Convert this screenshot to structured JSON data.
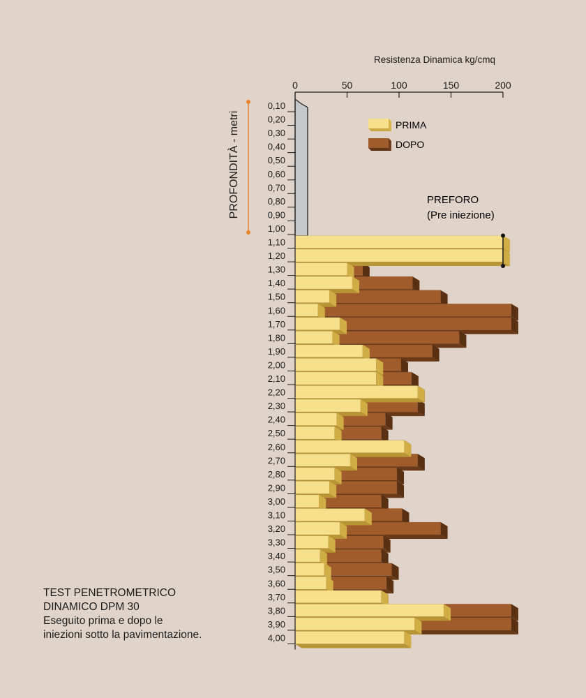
{
  "caption": {
    "line1": "TEST PENETROMETRICO",
    "line2": "DINAMICO DPM 30",
    "line3": "Eseguito prima e dopo le",
    "line4": "iniezioni sotto la pavimentazione."
  },
  "chart_data": {
    "type": "bar",
    "orientation": "horizontal",
    "x_axis_label": "Resistenza Dinamica kg/cmq",
    "y_axis_label": "PROFONDITÀ - metri",
    "xlim": [
      0,
      200
    ],
    "x_ticks": [
      "0",
      "50",
      "100",
      "150",
      "200"
    ],
    "x_tick_values": [
      0,
      50,
      100,
      150,
      200
    ],
    "legend_position": "top-right",
    "categories": [
      "0,10",
      "0,20",
      "0,30",
      "0,40",
      "0,50",
      "0,60",
      "0,70",
      "0,80",
      "0,90",
      "1,00",
      "1,10",
      "1,20",
      "1,30",
      "1,40",
      "1,50",
      "1,60",
      "1,70",
      "1,80",
      "1,90",
      "2,00",
      "2,10",
      "2,20",
      "2,30",
      "2,40",
      "2,50",
      "2,60",
      "2,70",
      "2,80",
      "2,90",
      "3,00",
      "3,10",
      "3,20",
      "3,30",
      "3,40",
      "3,50",
      "3,60",
      "3,70",
      "3,80",
      "3,90",
      "4,00"
    ],
    "series": [
      {
        "name": "PRIMA",
        "color": "#f7e08c",
        "values": [
          null,
          null,
          null,
          null,
          null,
          null,
          null,
          null,
          null,
          null,
          200,
          200,
          50,
          55,
          33,
          22,
          43,
          36,
          65,
          78,
          78,
          118,
          63,
          40,
          38,
          105,
          53,
          38,
          33,
          23,
          67,
          43,
          32,
          24,
          28,
          30,
          83,
          143,
          115,
          105
        ]
      },
      {
        "name": "DOPO",
        "color": "#a15c2c",
        "values": [
          null,
          null,
          null,
          null,
          null,
          null,
          null,
          null,
          null,
          null,
          null,
          null,
          65,
          113,
          140,
          208,
          208,
          158,
          132,
          102,
          112,
          118,
          118,
          87,
          83,
          105,
          118,
          98,
          98,
          83,
          103,
          140,
          85,
          83,
          93,
          88,
          83,
          208,
          208,
          103
        ]
      }
    ],
    "preforo": {
      "label_line1": "PREFORO",
      "label_line2": "(Pre iniezione)",
      "from_depth": "0,10",
      "to_depth": "1,00",
      "color": "#c5c7c9"
    }
  }
}
